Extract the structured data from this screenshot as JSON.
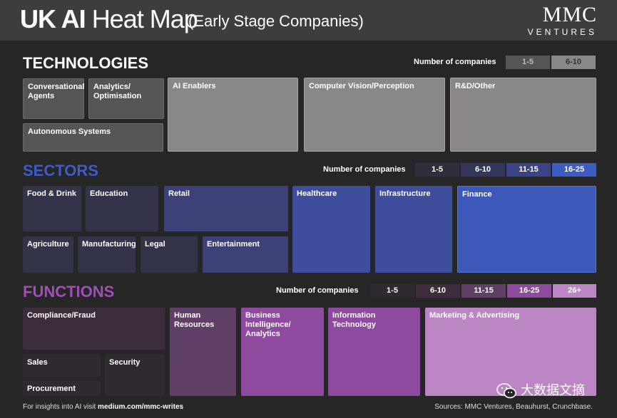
{
  "header": {
    "title_bold": "UK AI",
    "title_light": "Heat Map",
    "subtitle": "(Early Stage Companies)",
    "logo_top": "MMC",
    "logo_bottom": "VENTURES"
  },
  "technologies": {
    "title": "TECHNOLOGIES",
    "legend_label": "Number of companies",
    "legend": [
      "1-5",
      "6-10"
    ],
    "items": [
      "Conversational Agents",
      "Analytics/ Optimisation",
      "Autonomous Systems",
      "AI Enablers",
      "Computer Vision/Perception",
      "R&D/Other"
    ]
  },
  "sectors": {
    "title": "SECTORS",
    "legend_label": "Number of companies",
    "legend": [
      "1-5",
      "6-10",
      "11-15",
      "16-25"
    ],
    "items": [
      "Food & Drink",
      "Education",
      "Retail",
      "Healthcare",
      "Infrastructure",
      "Finance",
      "Agriculture",
      "Manufacturing",
      "Legal",
      "Entertainment"
    ]
  },
  "functions": {
    "title": "FUNCTIONS",
    "legend_label": "Number of companies",
    "legend": [
      "1-5",
      "6-10",
      "11-15",
      "16-25",
      "26+"
    ],
    "items": [
      "Compliance/Fraud",
      "Human Resources",
      "Business Intelligence/ Analytics",
      "Information Technology",
      "Marketing & Advertising",
      "Sales",
      "Security",
      "Procurement"
    ]
  },
  "footer": {
    "left_prefix": "For insights into AI visit ",
    "left_link": "medium.com/mmc-writes",
    "right": "Sources: MMC Ventures, Beauhurst, Crunchbase.",
    "watermark": "大数据文摘"
  },
  "colors": {
    "tech": "#8a8788",
    "sectors": "#3c59ba",
    "functions": "#8e4a9e"
  }
}
